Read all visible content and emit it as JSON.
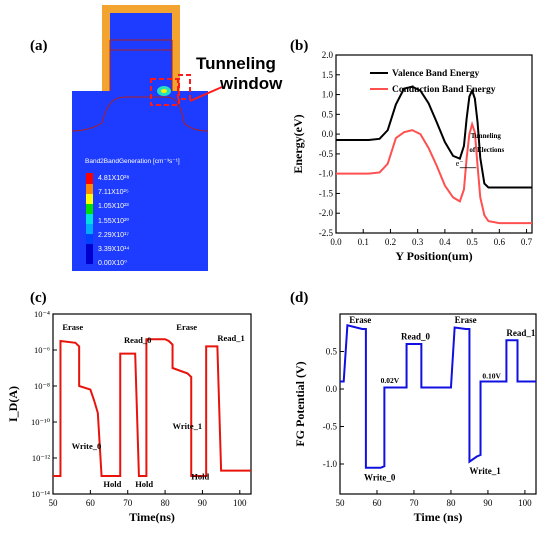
{
  "panels": {
    "a": {
      "label": "(a)",
      "annotation": "Tunneling window",
      "annotation_line1": "Tunneling",
      "annotation_line2": "window",
      "legend_title": "Band2BandGeneration [cm⁻³s⁻¹]",
      "legend_values": [
        "4.81X10²⁸",
        "7.11X10²⁵",
        "1.05X10²³",
        "1.55X10²⁰",
        "2.29X10¹⁷",
        "3.39X10¹⁴",
        "0.00X10⁰"
      ],
      "colors": {
        "device": "#1e3cff",
        "gate": "#f2a330",
        "gate_inner": "#1e3cff",
        "highlight": "#ff1a1a"
      }
    },
    "b": {
      "label": "(b)"
    },
    "c": {
      "label": "(c)"
    },
    "d": {
      "label": "(d)"
    }
  },
  "chart_data": [
    {
      "id": "b",
      "type": "line",
      "xlabel": "Y Position(um)",
      "ylabel": "Energy(eV)",
      "xlim": [
        0.0,
        0.72
      ],
      "ylim": [
        -2.5,
        2.0
      ],
      "xticks": [
        "0.0",
        "0.1",
        "0.2",
        "0.3",
        "0.4",
        "0.5",
        "0.6",
        "0.7"
      ],
      "yticks": [
        "-2.5",
        "-2.0",
        "-1.5",
        "-1.0",
        "-0.5",
        "0.0",
        "0.5",
        "1.0",
        "1.5",
        "2.0"
      ],
      "legend_position": "top-right",
      "annotations": [
        "Tunneling",
        "of Elections",
        "e⁻"
      ],
      "series": [
        {
          "name": "Valence Band Energy",
          "color": "#000000",
          "x": [
            0.0,
            0.12,
            0.16,
            0.19,
            0.22,
            0.25,
            0.28,
            0.31,
            0.34,
            0.37,
            0.4,
            0.43,
            0.455,
            0.47,
            0.48,
            0.49,
            0.5,
            0.51,
            0.52,
            0.53,
            0.545,
            0.56,
            0.6,
            0.72
          ],
          "y": [
            -0.15,
            -0.15,
            -0.12,
            0.1,
            0.75,
            1.15,
            1.2,
            1.1,
            0.78,
            0.3,
            -0.2,
            -0.55,
            -0.62,
            -0.3,
            0.4,
            0.95,
            1.1,
            0.9,
            0.3,
            -0.6,
            -1.25,
            -1.35,
            -1.35,
            -1.35
          ]
        },
        {
          "name": "Conduction Band Energy",
          "color": "#ff5050",
          "x": [
            0.0,
            0.12,
            0.16,
            0.19,
            0.22,
            0.25,
            0.28,
            0.31,
            0.34,
            0.37,
            0.4,
            0.43,
            0.455,
            0.47,
            0.48,
            0.49,
            0.5,
            0.51,
            0.52,
            0.53,
            0.545,
            0.56,
            0.6,
            0.72
          ],
          "y": [
            -1.0,
            -1.0,
            -0.97,
            -0.75,
            -0.1,
            0.05,
            0.1,
            0.0,
            -0.35,
            -0.8,
            -1.3,
            -1.6,
            -1.7,
            -1.4,
            -0.6,
            0.0,
            0.25,
            0.05,
            -0.8,
            -1.6,
            -2.05,
            -2.2,
            -2.25,
            -2.25
          ]
        }
      ]
    },
    {
      "id": "c",
      "type": "line",
      "xlabel": "Time(ns)",
      "ylabel": "I_D(A)",
      "xlim": [
        50,
        103
      ],
      "ylog": true,
      "ylim_exp": [
        -14,
        -4
      ],
      "xticks": [
        "50",
        "60",
        "70",
        "80",
        "90",
        "100"
      ],
      "yticks": [
        "10⁻¹⁴",
        "10⁻¹²",
        "10⁻¹⁰",
        "10⁻⁸",
        "10⁻⁶",
        "10⁻⁴"
      ],
      "annotations": [
        "Erase",
        "Write_0",
        "Hold",
        "Read_0",
        "Hold",
        "Erase",
        "Write_1",
        "Hold",
        "Read_1"
      ],
      "series": [
        {
          "color": "#e8140c",
          "x": [
            50,
            52,
            52,
            56,
            57,
            57,
            60,
            61,
            62,
            63,
            63,
            67,
            67,
            68,
            68,
            72,
            72,
            73,
            73,
            75,
            75,
            80,
            80,
            81,
            82,
            82,
            86,
            87,
            87,
            90,
            90,
            91,
            91,
            94,
            94,
            95,
            95,
            98,
            98,
            100,
            100,
            103
          ],
          "log10y": [
            -13,
            -13,
            -5.5,
            -5.6,
            -5.8,
            -8,
            -8.2,
            -8.8,
            -9.5,
            -13,
            -13,
            -13,
            -13,
            -13,
            -6.2,
            -6.2,
            -6.2,
            -13,
            -13,
            -13,
            -5.4,
            -5.4,
            -5.4,
            -5.5,
            -5.7,
            -7,
            -7.3,
            -7.5,
            -13,
            -13,
            -13,
            -13,
            -5.8,
            -5.8,
            -5.8,
            -12.7,
            -12.7,
            -12.7,
            -12.7,
            -12.7,
            -12.7,
            -12.7
          ]
        }
      ]
    },
    {
      "id": "d",
      "type": "line",
      "xlabel": "Time (ns)",
      "ylabel": "FG Potential (V)",
      "xlim": [
        50,
        103
      ],
      "ylim": [
        -1.4,
        1.0
      ],
      "xticks": [
        "50",
        "60",
        "70",
        "80",
        "90",
        "100"
      ],
      "yticks": [
        "-1.0",
        "-0.5",
        "0.0",
        "0.5"
      ],
      "annotations": [
        "Erase",
        "Write_0",
        "0.02V",
        "Read_0",
        "Erase",
        "Write_1",
        "0.10V",
        "Read_1"
      ],
      "series": [
        {
          "color": "#1010e0",
          "x": [
            50,
            51,
            51,
            52,
            56,
            57,
            57,
            61,
            62,
            62,
            67,
            67,
            68,
            68,
            72,
            72,
            75,
            75,
            79,
            80,
            80,
            81,
            84,
            85,
            85,
            87,
            88,
            88,
            94,
            94,
            95,
            95,
            98,
            98,
            103
          ],
          "y": [
            0.1,
            0.1,
            0.1,
            0.85,
            0.8,
            0.8,
            -1.05,
            -1.05,
            -1.03,
            0.02,
            0.02,
            0.02,
            0.02,
            0.6,
            0.6,
            0.02,
            0.02,
            0.02,
            0.02,
            0.02,
            0.02,
            0.82,
            0.8,
            0.8,
            -0.97,
            -0.9,
            -0.88,
            0.1,
            0.1,
            0.1,
            0.1,
            0.65,
            0.65,
            0.1,
            0.1
          ]
        }
      ]
    }
  ]
}
